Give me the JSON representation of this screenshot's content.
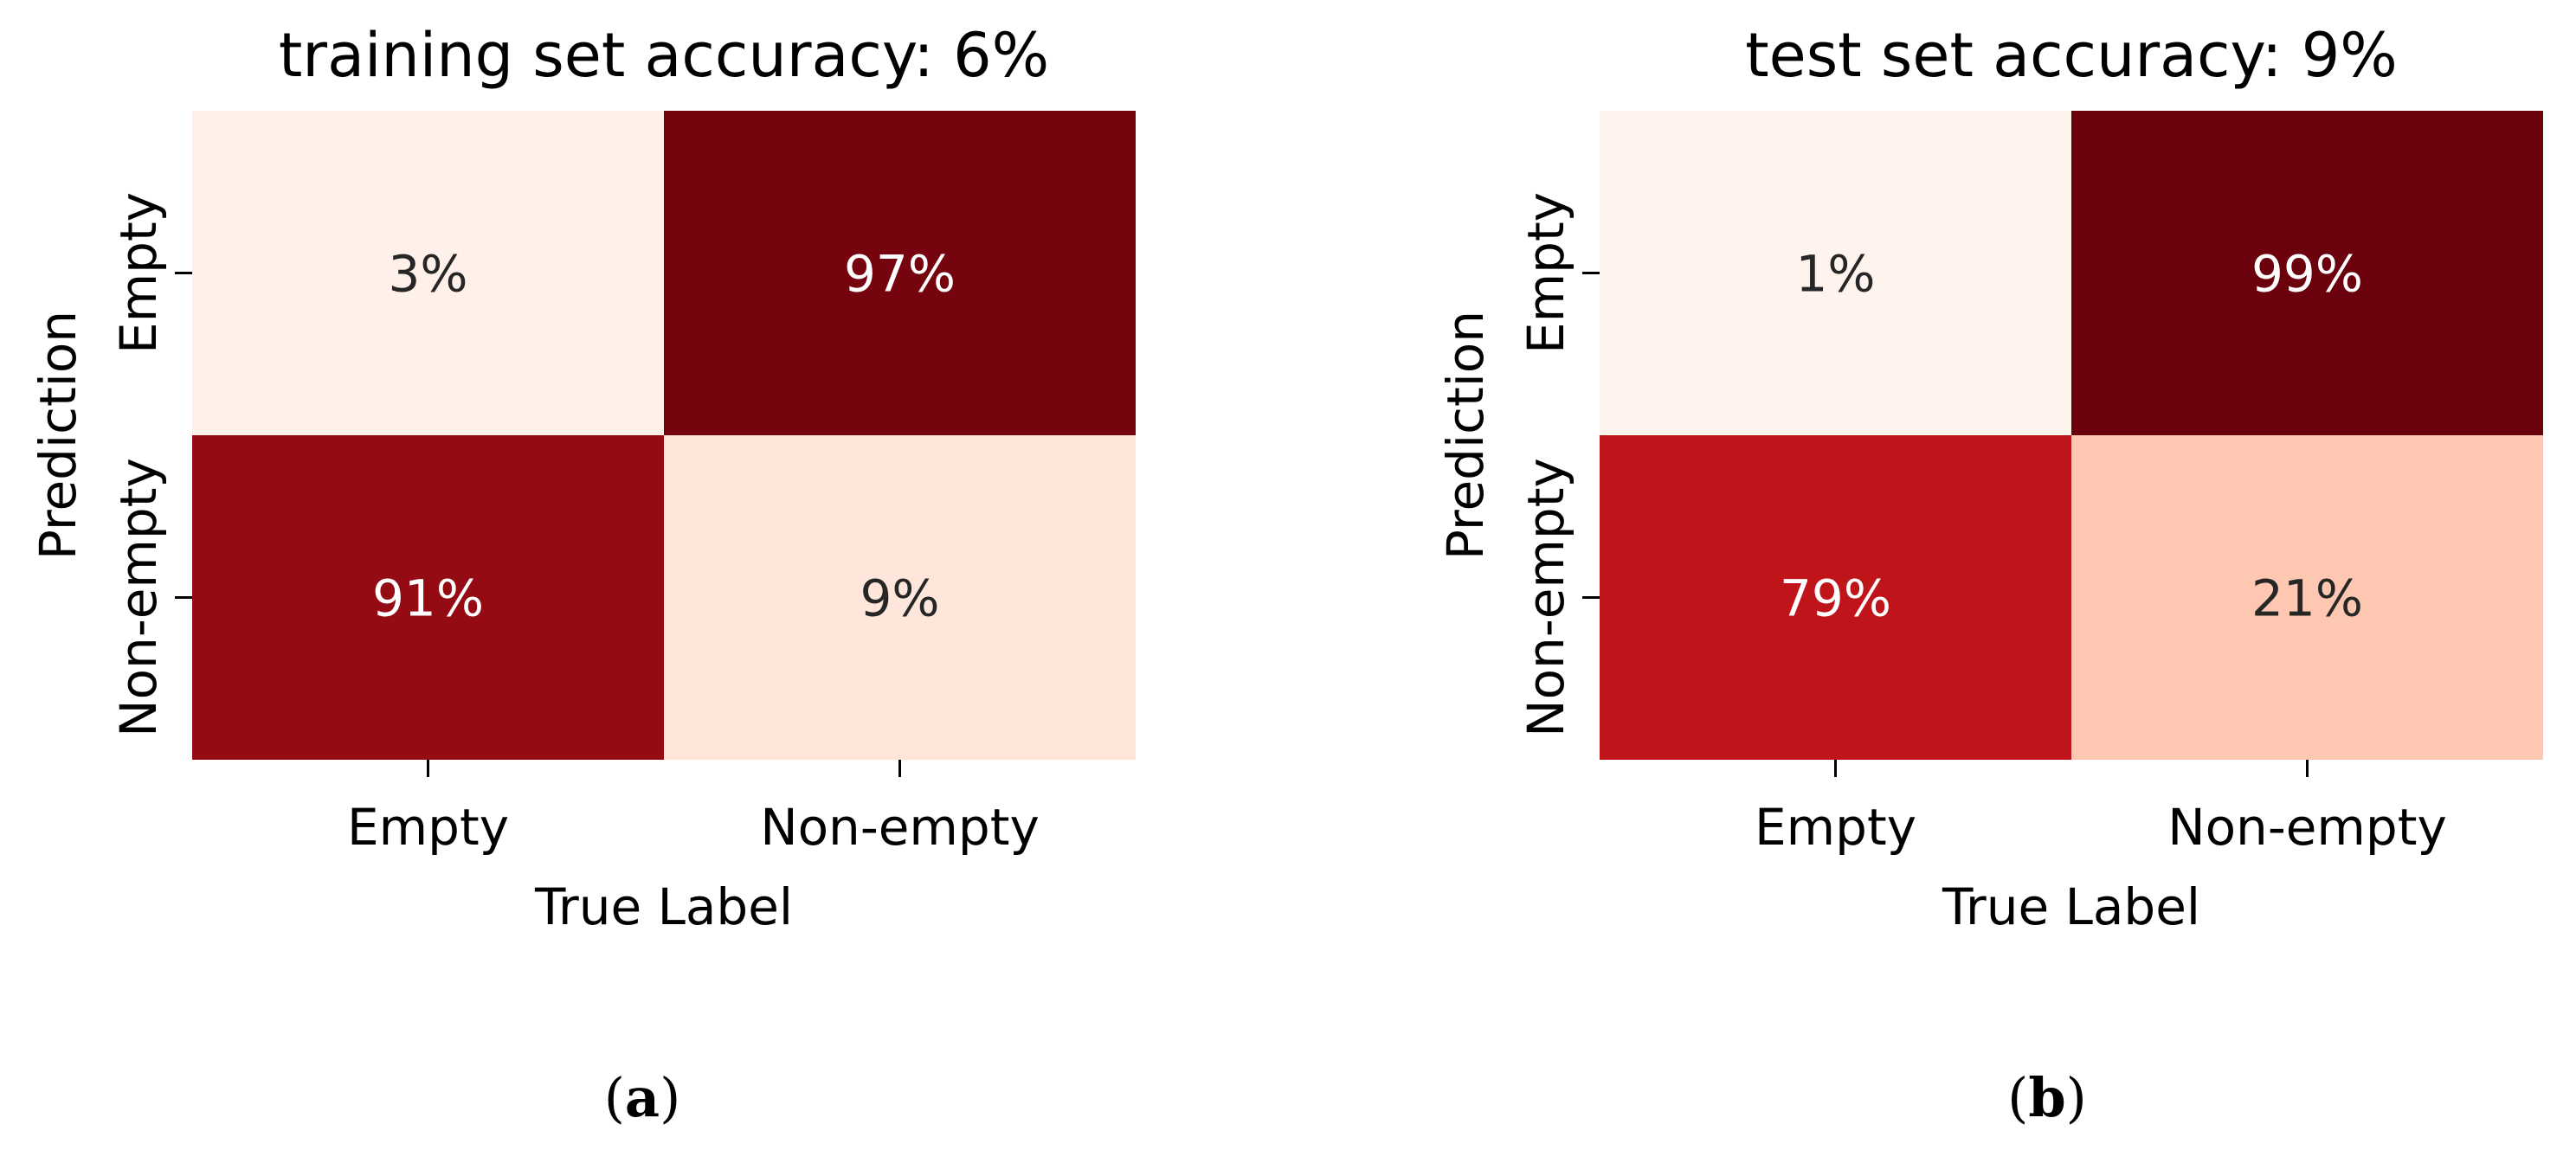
{
  "chart_data": [
    {
      "type": "heatmap",
      "title": "training set accuracy: 6%",
      "xlabel": "True Label",
      "ylabel": "Prediction",
      "x_categories": [
        "Empty",
        "Non-empty"
      ],
      "y_categories": [
        "Empty",
        "Non-empty"
      ],
      "values": [
        [
          3,
          97
        ],
        [
          91,
          9
        ]
      ],
      "cell_labels": [
        [
          "3%",
          "97%"
        ],
        [
          "91%",
          "9%"
        ]
      ],
      "colormap": "Reds",
      "color_range": [
        0,
        100
      ],
      "grid": false,
      "legend": "none",
      "caption_open": "(",
      "caption_letter": "a",
      "caption_close": ")"
    },
    {
      "type": "heatmap",
      "title": "test set accuracy: 9%",
      "xlabel": "True Label",
      "ylabel": "Prediction",
      "x_categories": [
        "Empty",
        "Non-empty"
      ],
      "y_categories": [
        "Empty",
        "Non-empty"
      ],
      "values": [
        [
          1,
          99
        ],
        [
          79,
          21
        ]
      ],
      "cell_labels": [
        [
          "1%",
          "99%"
        ],
        [
          "79%",
          "21%"
        ]
      ],
      "colormap": "Reds",
      "color_range": [
        0,
        100
      ],
      "grid": false,
      "legend": "none",
      "caption_open": "(",
      "caption_letter": "b",
      "caption_close": ")"
    }
  ]
}
